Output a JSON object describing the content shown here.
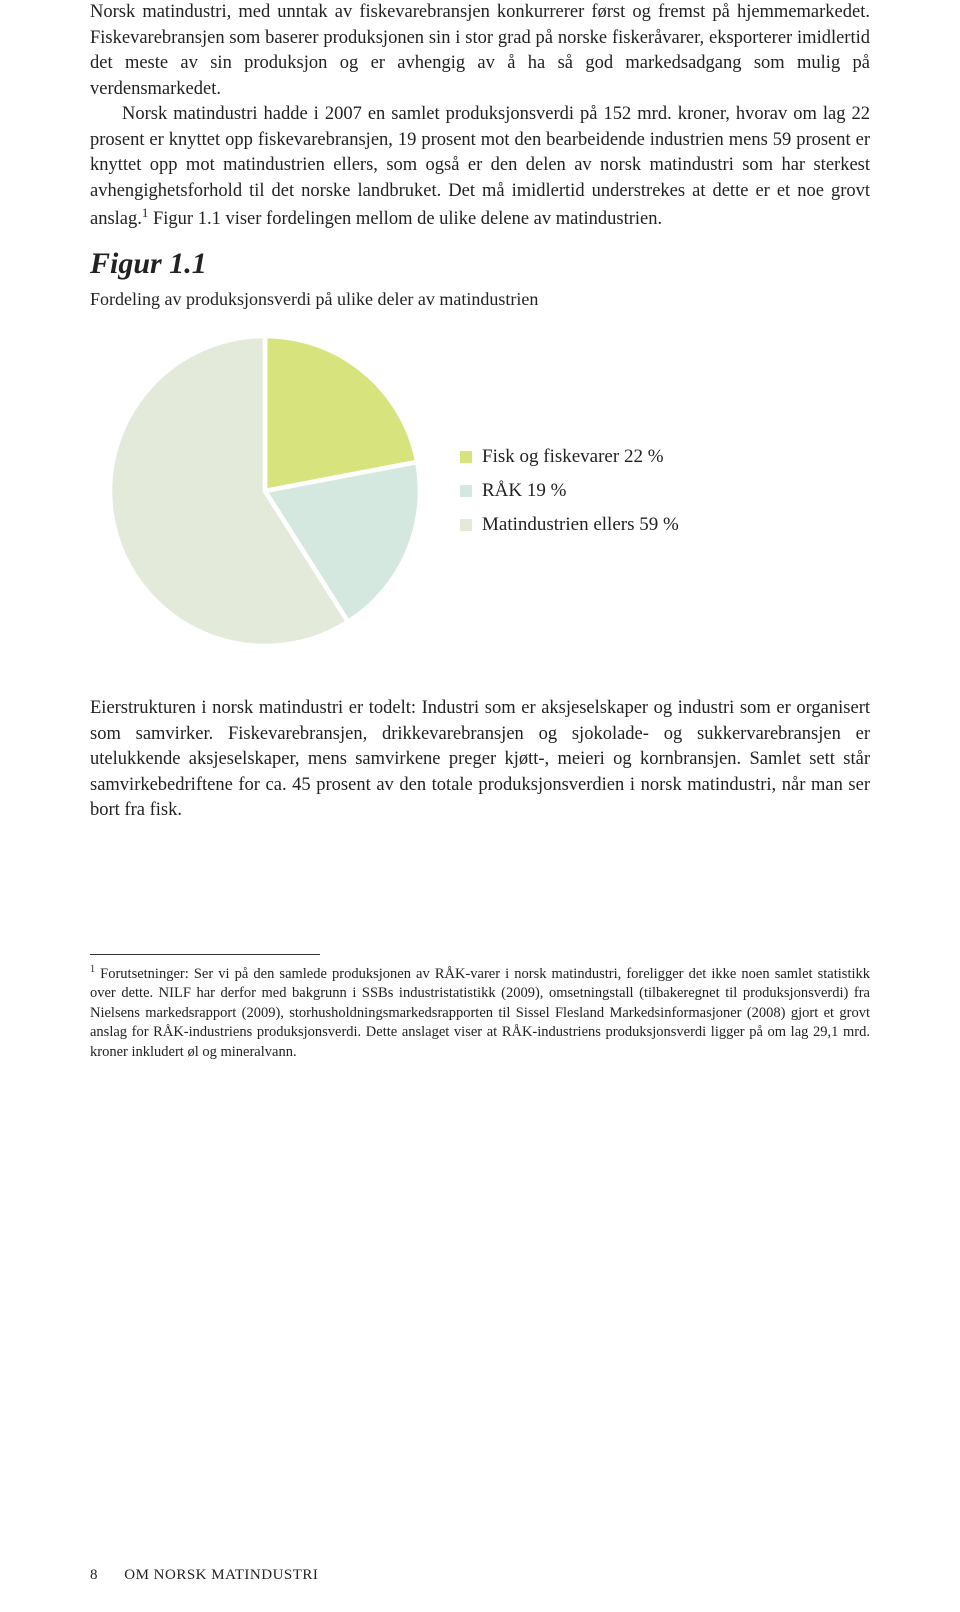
{
  "paragraphs": {
    "p1": "Norsk matindustri, med unntak av fiskevarebransjen konkurrerer først og fremst på hjemmemarkedet.",
    "p2": "Fiskevarebransjen som baserer produksjonen sin i stor grad på norske fiskeråvarer, eksporterer imidlertid det meste av sin produksjon og er avhengig av å ha så god markedsadgang som mulig på verdensmarkedet.",
    "p3": "Norsk matindustri hadde i 2007 en samlet produksjonsverdi på 152 mrd. kroner, hvorav om lag 22 prosent er knyttet opp fiskevarebransjen, 19 prosent mot den bearbeidende industrien mens 59 prosent er knyttet opp mot matindustrien ellers, som også er den delen av norsk matindustri som har sterkest avhengighetsforhold til det norske landbruket. Det må imidlertid understrekes at dette er et noe grovt anslag.",
    "p3_tail": " Figur 1.1 viser fordelingen mellom de ulike delene av matindustrien.",
    "p4": "Eierstrukturen i norsk matindustri er todelt: Industri som er aksjeselskaper og industri som er organisert som samvirker. Fiskevarebransjen, drikkevarebransjen og sjokolade- og sukkervarebransjen er utelukkende aksjeselskaper, mens samvirkene preger kjøtt-, meieri og kornbransjen. Samlet sett står samvirkebedriftene for ca. 45 prosent av den totale produksjonsverdien i norsk matindustri, når man ser bort fra fisk."
  },
  "figure": {
    "heading": "Figur 1.1",
    "subtitle": "Fordeling av produksjonsverdi på ulike deler av matindustrien"
  },
  "chart": {
    "type": "pie",
    "background_color": "#ffffff",
    "slices": [
      {
        "label": "Fisk og fiskevarer 22 %",
        "value": 22,
        "color": "#d7e37d"
      },
      {
        "label": "RÅK 19 %",
        "value": 19,
        "color": "#d4e8df"
      },
      {
        "label": "Matindustrien ellers 59 %",
        "value": 59,
        "color": "#e3ead9"
      }
    ],
    "stroke_color": "#ffffff",
    "stroke_width": 1.5,
    "legend_fontsize": 19,
    "legend_square_size": 12
  },
  "footnote": {
    "marker": "1",
    "text": "Forutsetninger: Ser vi på den samlede produksjonen av RÅK-varer i norsk matindustri, foreligger det ikke noen samlet statistikk over dette. NILF har derfor med bakgrunn i SSBs industristatistikk (2009), omsetningstall (tilbakeregnet til produksjonsverdi) fra Nielsens markedsrapport (2009), storhusholdningsmarkedsrapporten til Sissel Flesland Markedsinformasjoner (2008) gjort et grovt anslag for RÅK-industriens produksjonsverdi. Dette anslaget viser at RÅK-industriens produksjonsverdi ligger på om lag 29,1 mrd. kroner inkludert øl og mineralvann."
  },
  "footer": {
    "page": "8",
    "section": "OM NORSK MATINDUSTRI"
  }
}
